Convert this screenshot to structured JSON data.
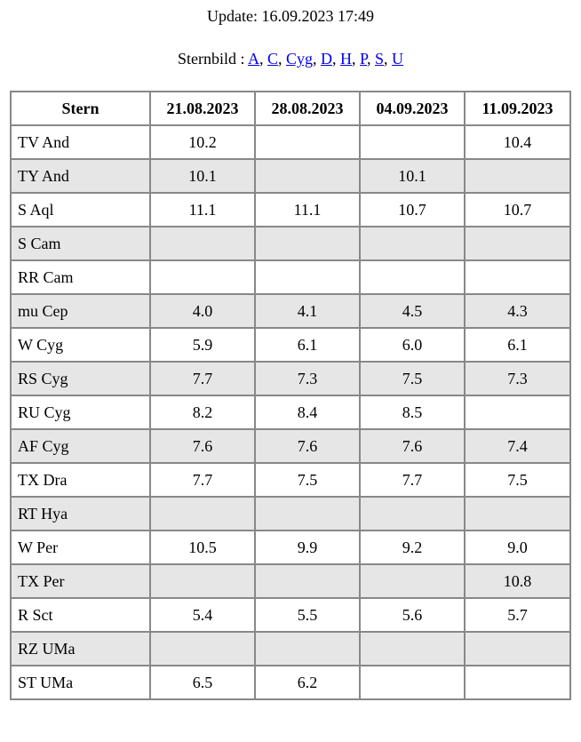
{
  "header": {
    "update": "Update: 16.09.2023 17:49",
    "nav_label": "Sternbild :",
    "separator": ", ",
    "links": [
      "A",
      "C",
      "Cyg",
      "D",
      "H",
      "P",
      "S",
      "U"
    ]
  },
  "table": {
    "columns": [
      "Stern",
      "21.08.2023",
      "28.08.2023",
      "04.09.2023",
      "11.09.2023"
    ],
    "rows": [
      [
        "TV And",
        "10.2",
        null,
        null,
        "10.4"
      ],
      [
        "TY And",
        "10.1",
        null,
        "10.1",
        null
      ],
      [
        "S Aql",
        "11.1",
        "11.1",
        "10.7",
        "10.7"
      ],
      [
        "S Cam",
        null,
        null,
        null,
        null
      ],
      [
        "RR Cam",
        null,
        null,
        null,
        null
      ],
      [
        "mu Cep",
        "4.0",
        "4.1",
        "4.5",
        "4.3"
      ],
      [
        "W Cyg",
        "5.9",
        "6.1",
        "6.0",
        "6.1"
      ],
      [
        "RS Cyg",
        "7.7",
        "7.3",
        "7.5",
        "7.3"
      ],
      [
        "RU Cyg",
        "8.2",
        "8.4",
        "8.5",
        null
      ],
      [
        "AF Cyg",
        "7.6",
        "7.6",
        "7.6",
        "7.4"
      ],
      [
        "TX Dra",
        "7.7",
        "7.5",
        "7.7",
        "7.5"
      ],
      [
        "RT Hya",
        null,
        null,
        null,
        null
      ],
      [
        "W Per",
        "10.5",
        "9.9",
        "9.2",
        "9.0"
      ],
      [
        "TX Per",
        null,
        null,
        null,
        "10.8"
      ],
      [
        "R Sct",
        "5.4",
        "5.5",
        "5.6",
        "5.7"
      ],
      [
        "RZ UMa",
        null,
        null,
        null,
        null
      ],
      [
        "ST UMa",
        "6.5",
        "6.2",
        null,
        null
      ]
    ]
  }
}
